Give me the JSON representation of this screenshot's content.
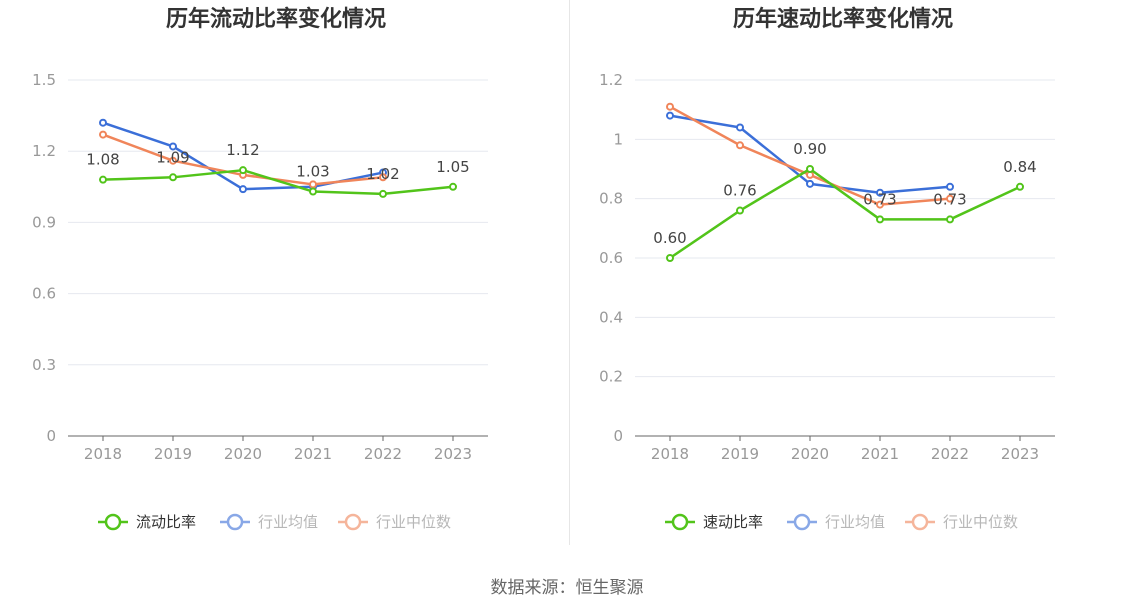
{
  "source_label": "数据来源：恒生聚源",
  "chart_data": [
    {
      "type": "line",
      "title": "历年流动比率变化情况",
      "xlabel": "",
      "ylabel": "",
      "categories": [
        "2018",
        "2019",
        "2020",
        "2021",
        "2022",
        "2023"
      ],
      "ylim": [
        0,
        1.5
      ],
      "yticks": [
        0,
        0.3,
        0.6,
        0.9,
        1.2,
        1.5
      ],
      "ytick_labels": [
        "0",
        "0.3",
        "0.6",
        "0.9",
        "1.2",
        "1.5"
      ],
      "grid": true,
      "legend_position": "bottom",
      "series": [
        {
          "name": "流动比率",
          "color": "#52c41a",
          "values": [
            1.08,
            1.09,
            1.12,
            1.03,
            1.02,
            1.05
          ],
          "data_labels": [
            "1.08",
            "1.09",
            "1.12",
            "1.03",
            "1.02",
            "1.05"
          ]
        },
        {
          "name": "行业均值",
          "color": "#3b6fd8",
          "values": [
            1.32,
            1.22,
            1.04,
            1.05,
            1.11,
            null
          ]
        },
        {
          "name": "行业中位数",
          "color": "#f0855a",
          "values": [
            1.27,
            1.16,
            1.1,
            1.06,
            1.09,
            null
          ]
        }
      ]
    },
    {
      "type": "line",
      "title": "历年速动比率变化情况",
      "xlabel": "",
      "ylabel": "",
      "categories": [
        "2018",
        "2019",
        "2020",
        "2021",
        "2022",
        "2023"
      ],
      "ylim": [
        0,
        1.2
      ],
      "yticks": [
        0,
        0.2,
        0.4,
        0.6,
        0.8,
        1.0,
        1.2
      ],
      "ytick_labels": [
        "0",
        "0.2",
        "0.4",
        "0.6",
        "0.8",
        "1",
        "1.2"
      ],
      "grid": true,
      "legend_position": "bottom",
      "series": [
        {
          "name": "速动比率",
          "color": "#52c41a",
          "values": [
            0.6,
            0.76,
            0.9,
            0.73,
            0.73,
            0.84
          ],
          "data_labels": [
            "0.60",
            "0.76",
            "0.90",
            "0.73",
            "0.73",
            "0.84"
          ]
        },
        {
          "name": "行业均值",
          "color": "#3b6fd8",
          "values": [
            1.08,
            1.04,
            0.85,
            0.82,
            0.84,
            null
          ]
        },
        {
          "name": "行业中位数",
          "color": "#f0855a",
          "values": [
            1.11,
            0.98,
            0.88,
            0.78,
            0.8,
            null
          ]
        }
      ]
    }
  ]
}
